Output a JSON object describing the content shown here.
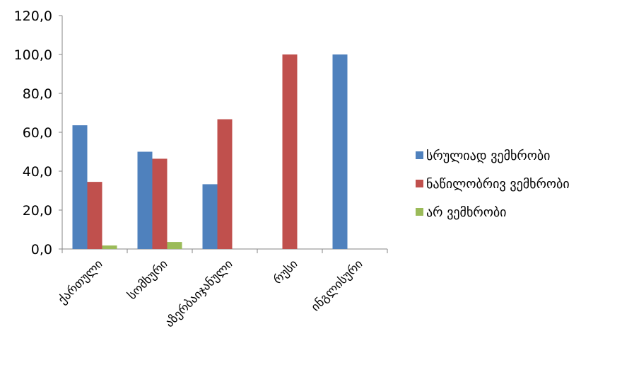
{
  "chart_data": {
    "type": "bar",
    "categories": [
      "ქართული",
      "სომხური",
      "აზერბაიჯანული",
      "რუსი",
      "ინგლისური"
    ],
    "series": [
      {
        "name": "სრულიად ვემხრობი",
        "color": "#4F81BD",
        "values": [
          63.6,
          50.0,
          33.3,
          0,
          100.0
        ]
      },
      {
        "name": "ნაწილობრივ ვემხრობი",
        "color": "#C0504D",
        "values": [
          34.5,
          46.4,
          66.7,
          100.0,
          0
        ]
      },
      {
        "name": "არ ვემხრობი",
        "color": "#9BBB59",
        "values": [
          1.8,
          3.6,
          0,
          0,
          0
        ]
      }
    ],
    "ylim": [
      0,
      120
    ],
    "yticks": [
      "0,0",
      "20,0",
      "40,0",
      "60,0",
      "80,0",
      "100,0",
      "120,0"
    ],
    "legend_position": "right",
    "grid": false
  }
}
